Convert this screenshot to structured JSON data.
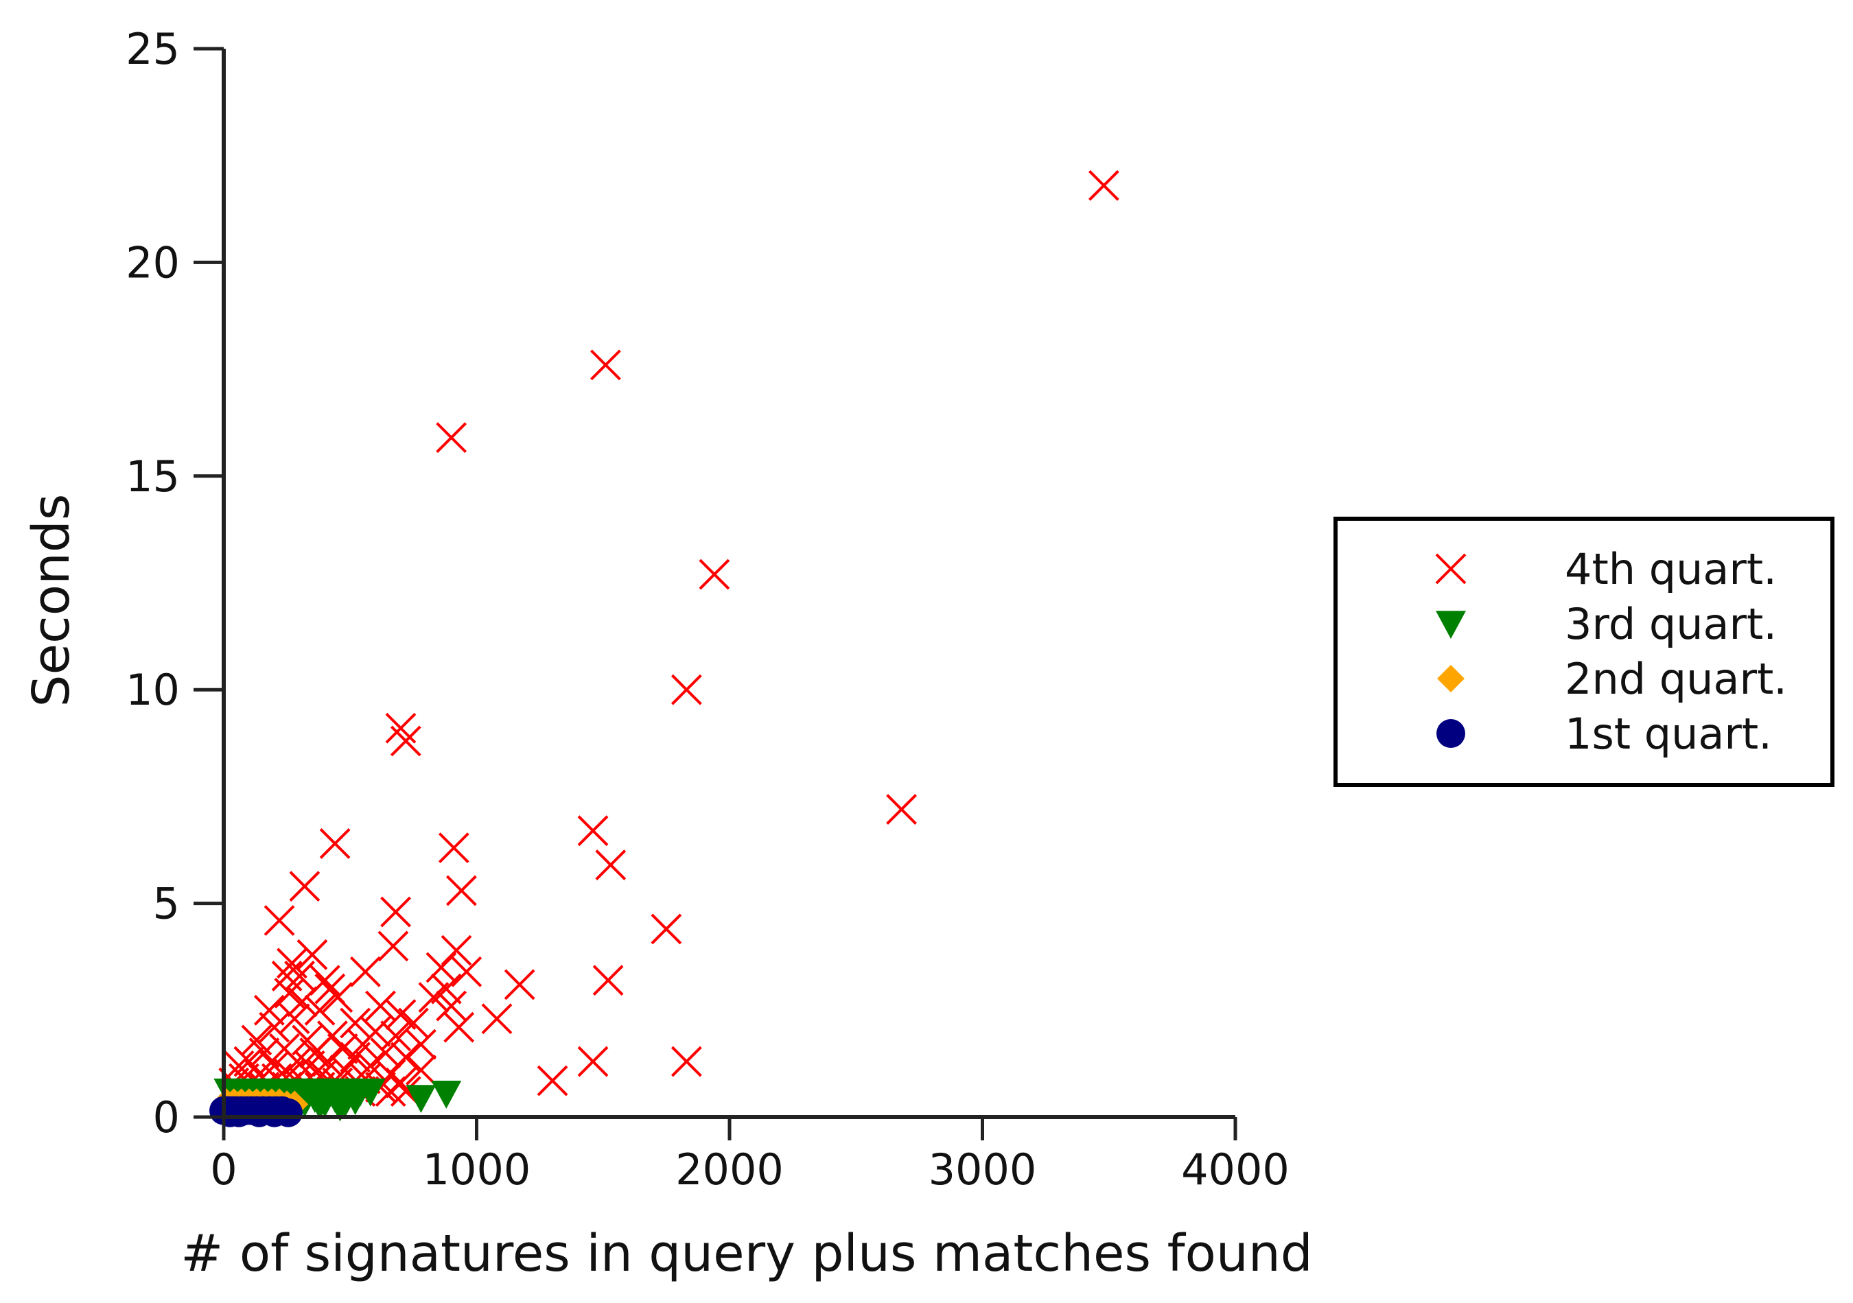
{
  "chart_data": {
    "type": "scatter",
    "title": "",
    "xlabel": "# of signatures in query plus matches found",
    "ylabel": "Seconds",
    "xlim": [
      0,
      4000
    ],
    "ylim": [
      0,
      25
    ],
    "xticks": [
      "0",
      "1000",
      "2000",
      "3000",
      "4000"
    ],
    "yticks": [
      "0",
      "5",
      "10",
      "15",
      "20",
      "25"
    ],
    "grid": false,
    "legend_position": "right",
    "series": [
      {
        "name": "4th quart.",
        "marker": "x",
        "color": "#ff0000",
        "points": [
          [
            3480,
            21.8
          ],
          [
            1510,
            17.6
          ],
          [
            900,
            15.9
          ],
          [
            1940,
            12.7
          ],
          [
            1830,
            10.0
          ],
          [
            700,
            9.1
          ],
          [
            720,
            8.8
          ],
          [
            2680,
            7.2
          ],
          [
            1460,
            6.7
          ],
          [
            440,
            6.4
          ],
          [
            910,
            6.3
          ],
          [
            1530,
            5.9
          ],
          [
            320,
            5.4
          ],
          [
            940,
            5.3
          ],
          [
            680,
            4.8
          ],
          [
            220,
            4.6
          ],
          [
            1750,
            4.4
          ],
          [
            670,
            4.0
          ],
          [
            920,
            3.9
          ],
          [
            350,
            3.8
          ],
          [
            270,
            3.6
          ],
          [
            860,
            3.5
          ],
          [
            960,
            3.4
          ],
          [
            560,
            3.4
          ],
          [
            300,
            3.3
          ],
          [
            250,
            3.3
          ],
          [
            1520,
            3.2
          ],
          [
            400,
            3.2
          ],
          [
            1170,
            3.1
          ],
          [
            420,
            3.0
          ],
          [
            880,
            3.0
          ],
          [
            260,
            2.9
          ],
          [
            450,
            2.8
          ],
          [
            830,
            2.8
          ],
          [
            310,
            2.7
          ],
          [
            620,
            2.6
          ],
          [
            900,
            2.6
          ],
          [
            180,
            2.5
          ],
          [
            380,
            2.5
          ],
          [
            700,
            2.4
          ],
          [
            1080,
            2.3
          ],
          [
            280,
            2.3
          ],
          [
            520,
            2.2
          ],
          [
            750,
            2.2
          ],
          [
            930,
            2.1
          ],
          [
            200,
            2.1
          ],
          [
            600,
            2.0
          ],
          [
            430,
            1.9
          ],
          [
            680,
            1.9
          ],
          [
            130,
            1.8
          ],
          [
            330,
            1.8
          ],
          [
            550,
            1.7
          ],
          [
            780,
            1.7
          ],
          [
            240,
            1.6
          ],
          [
            470,
            1.6
          ],
          [
            640,
            1.5
          ],
          [
            160,
            1.5
          ],
          [
            360,
            1.5
          ],
          [
            520,
            1.4
          ],
          [
            720,
            1.4
          ],
          [
            100,
            1.3
          ],
          [
            290,
            1.3
          ],
          [
            1460,
            1.3
          ],
          [
            1830,
            1.3
          ],
          [
            410,
            1.3
          ],
          [
            580,
            1.2
          ],
          [
            60,
            1.2
          ],
          [
            200,
            1.2
          ],
          [
            340,
            1.2
          ],
          [
            780,
            1.1
          ],
          [
            480,
            1.1
          ],
          [
            660,
            1.0
          ],
          [
            140,
            1.0
          ],
          [
            260,
            1.0
          ],
          [
            390,
            1.0
          ],
          [
            560,
            0.9
          ],
          [
            1300,
            0.85
          ],
          [
            80,
            0.9
          ],
          [
            210,
            0.9
          ],
          [
            700,
            0.8
          ],
          [
            320,
            0.8
          ],
          [
            450,
            0.8
          ],
          [
            620,
            0.7
          ],
          [
            40,
            0.8
          ],
          [
            160,
            0.7
          ],
          [
            660,
            0.6
          ],
          [
            720,
            0.6
          ],
          [
            540,
            0.6
          ],
          [
            380,
            0.7
          ],
          [
            250,
            0.7
          ]
        ]
      },
      {
        "name": "3rd quart.",
        "marker": "triangle-down",
        "color": "#008000",
        "points": [
          [
            20,
            0.6
          ],
          [
            60,
            0.6
          ],
          [
            100,
            0.6
          ],
          [
            140,
            0.6
          ],
          [
            180,
            0.6
          ],
          [
            220,
            0.6
          ],
          [
            260,
            0.6
          ],
          [
            300,
            0.6
          ],
          [
            340,
            0.6
          ],
          [
            380,
            0.6
          ],
          [
            420,
            0.6
          ],
          [
            460,
            0.6
          ],
          [
            500,
            0.6
          ],
          [
            540,
            0.6
          ],
          [
            580,
            0.6
          ],
          [
            880,
            0.55
          ],
          [
            780,
            0.45
          ],
          [
            120,
            0.5
          ],
          [
            200,
            0.5
          ],
          [
            280,
            0.5
          ],
          [
            360,
            0.45
          ],
          [
            440,
            0.45
          ],
          [
            520,
            0.4
          ],
          [
            400,
            0.35
          ],
          [
            480,
            0.35
          ],
          [
            460,
            0.25
          ],
          [
            380,
            0.3
          ],
          [
            320,
            0.35
          ],
          [
            240,
            0.4
          ],
          [
            160,
            0.45
          ]
        ]
      },
      {
        "name": "2nd quart.",
        "marker": "diamond",
        "color": "#ffa500",
        "points": [
          [
            10,
            0.35
          ],
          [
            40,
            0.35
          ],
          [
            70,
            0.35
          ],
          [
            100,
            0.35
          ],
          [
            130,
            0.35
          ],
          [
            160,
            0.35
          ],
          [
            190,
            0.35
          ],
          [
            220,
            0.35
          ],
          [
            250,
            0.3
          ],
          [
            280,
            0.3
          ],
          [
            60,
            0.3
          ],
          [
            120,
            0.3
          ],
          [
            180,
            0.3
          ]
        ]
      },
      {
        "name": "1st quart.",
        "marker": "circle",
        "color": "#000080",
        "points": [
          [
            0,
            0.15
          ],
          [
            10,
            0.15
          ],
          [
            20,
            0.15
          ],
          [
            35,
            0.15
          ],
          [
            50,
            0.15
          ],
          [
            70,
            0.15
          ],
          [
            90,
            0.15
          ],
          [
            110,
            0.15
          ],
          [
            130,
            0.15
          ],
          [
            155,
            0.15
          ],
          [
            180,
            0.15
          ],
          [
            205,
            0.15
          ],
          [
            230,
            0.15
          ],
          [
            255,
            0.1
          ],
          [
            25,
            0.1
          ],
          [
            60,
            0.1
          ],
          [
            140,
            0.1
          ],
          [
            200,
            0.1
          ]
        ]
      }
    ]
  }
}
